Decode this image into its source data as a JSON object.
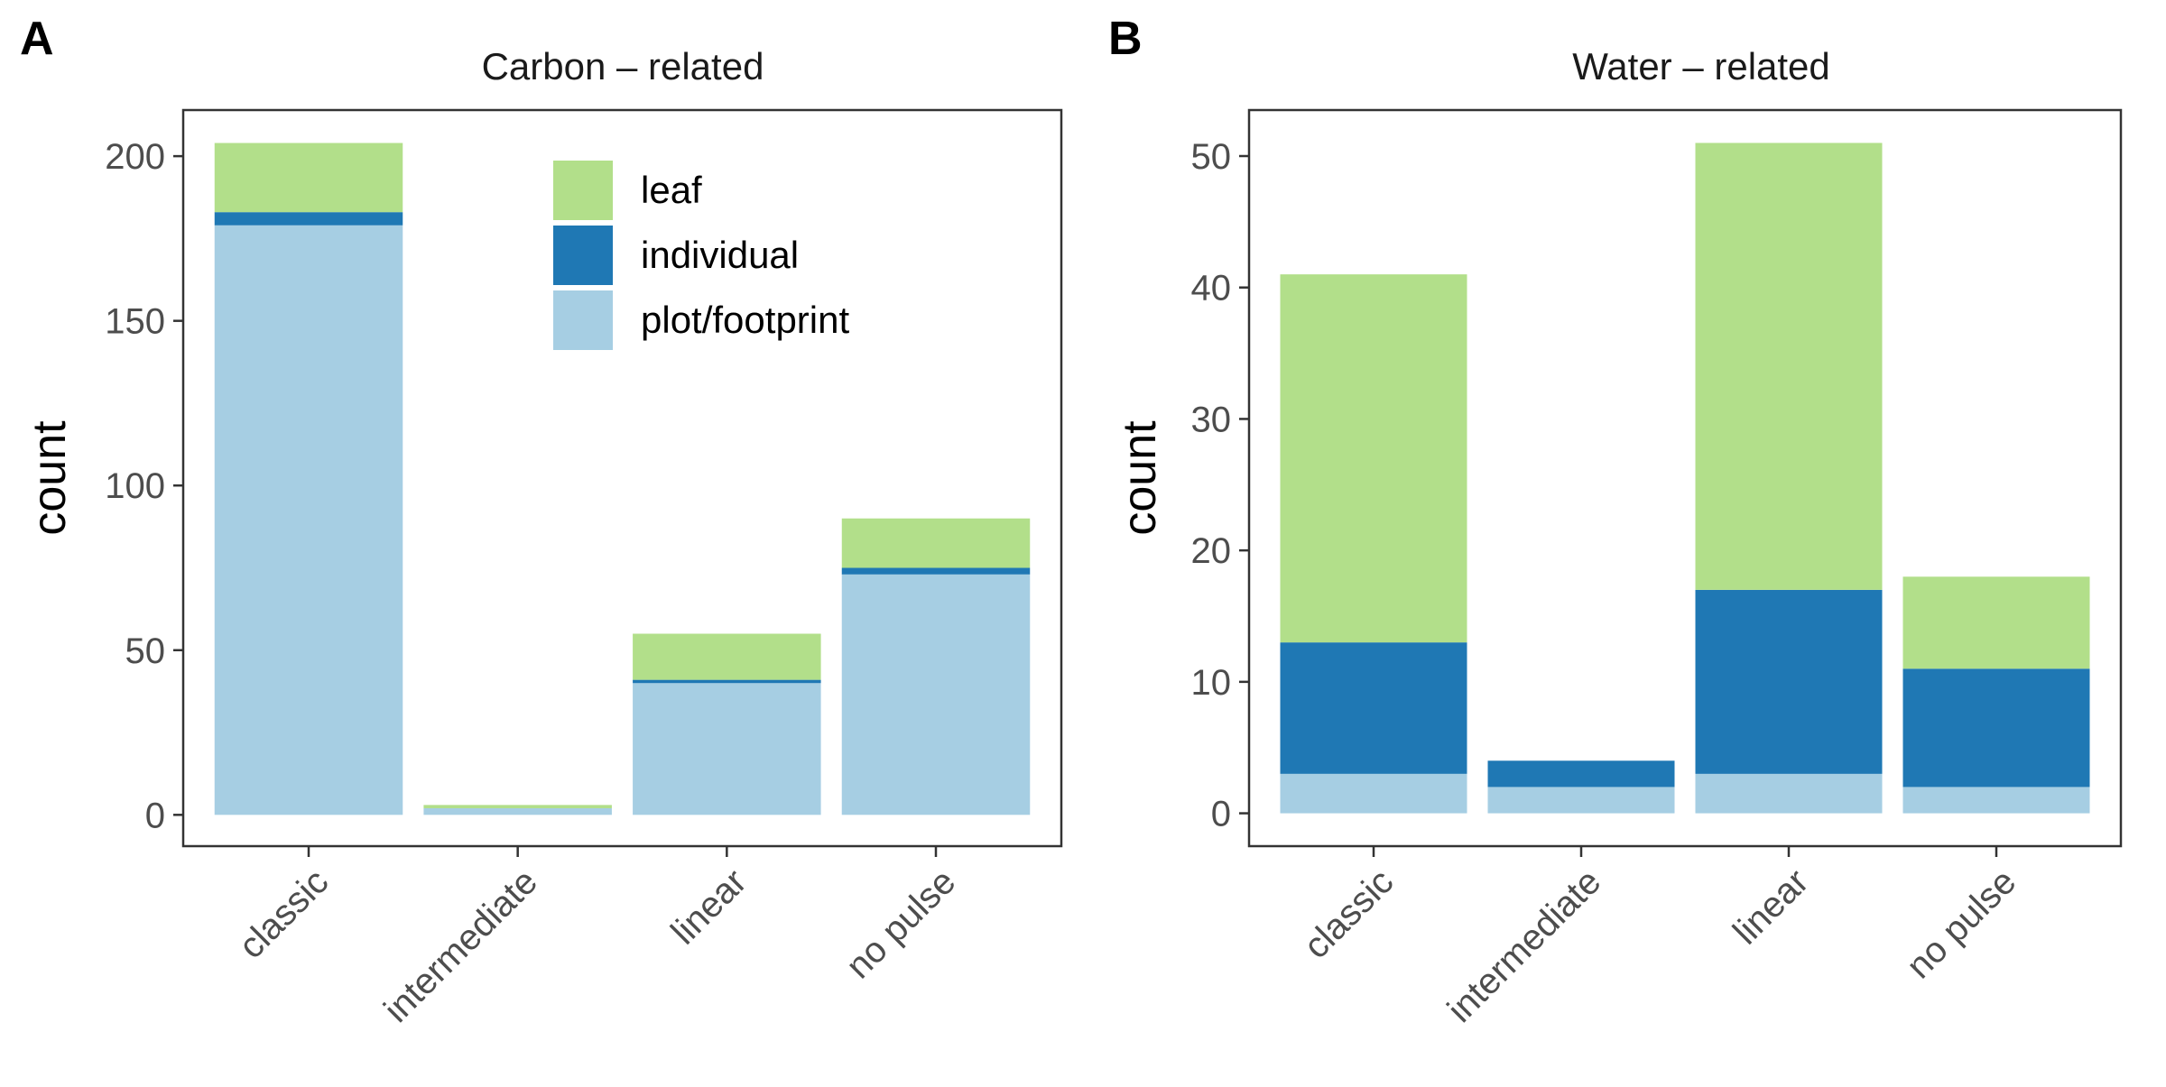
{
  "colors": {
    "leaf": "#b2df8a",
    "individual": "#1f78b4",
    "plot_footprint": "#a6cee3",
    "frame": "#333333",
    "tick_text": "#4d4d4d"
  },
  "legend": {
    "placement": "top-right inside panel A",
    "items": [
      {
        "key": "leaf",
        "label": "leaf"
      },
      {
        "key": "individual",
        "label": "individual"
      },
      {
        "key": "plot_footprint",
        "label": "plot/footprint"
      }
    ]
  },
  "chart_data": [
    {
      "panel_letter": "A",
      "type": "bar",
      "stacked": true,
      "title": "Carbon – related",
      "xlabel": "",
      "ylabel": "count",
      "ylim": [
        -9.5,
        214
      ],
      "yticks": [
        0,
        50,
        100,
        150,
        200
      ],
      "grid": false,
      "categories": [
        "classic",
        "intermediate",
        "linear",
        "no pulse"
      ],
      "series": [
        {
          "name": "plot/footprint",
          "key": "plot_footprint",
          "values": [
            179,
            2,
            40,
            73
          ]
        },
        {
          "name": "individual",
          "key": "individual",
          "values": [
            4,
            0,
            1,
            2
          ]
        },
        {
          "name": "leaf",
          "key": "leaf",
          "values": [
            21,
            1,
            14,
            15
          ]
        }
      ]
    },
    {
      "panel_letter": "B",
      "type": "bar",
      "stacked": true,
      "title": "Water – related",
      "xlabel": "",
      "ylabel": "count",
      "ylim": [
        -2.5,
        53.5
      ],
      "yticks": [
        0,
        10,
        20,
        30,
        40,
        50
      ],
      "grid": false,
      "categories": [
        "classic",
        "intermediate",
        "linear",
        "no pulse"
      ],
      "series": [
        {
          "name": "plot/footprint",
          "key": "plot_footprint",
          "values": [
            3,
            2,
            3,
            2
          ]
        },
        {
          "name": "individual",
          "key": "individual",
          "values": [
            10,
            2,
            14,
            9
          ]
        },
        {
          "name": "leaf",
          "key": "leaf",
          "values": [
            28,
            0,
            34,
            7
          ]
        }
      ]
    }
  ]
}
